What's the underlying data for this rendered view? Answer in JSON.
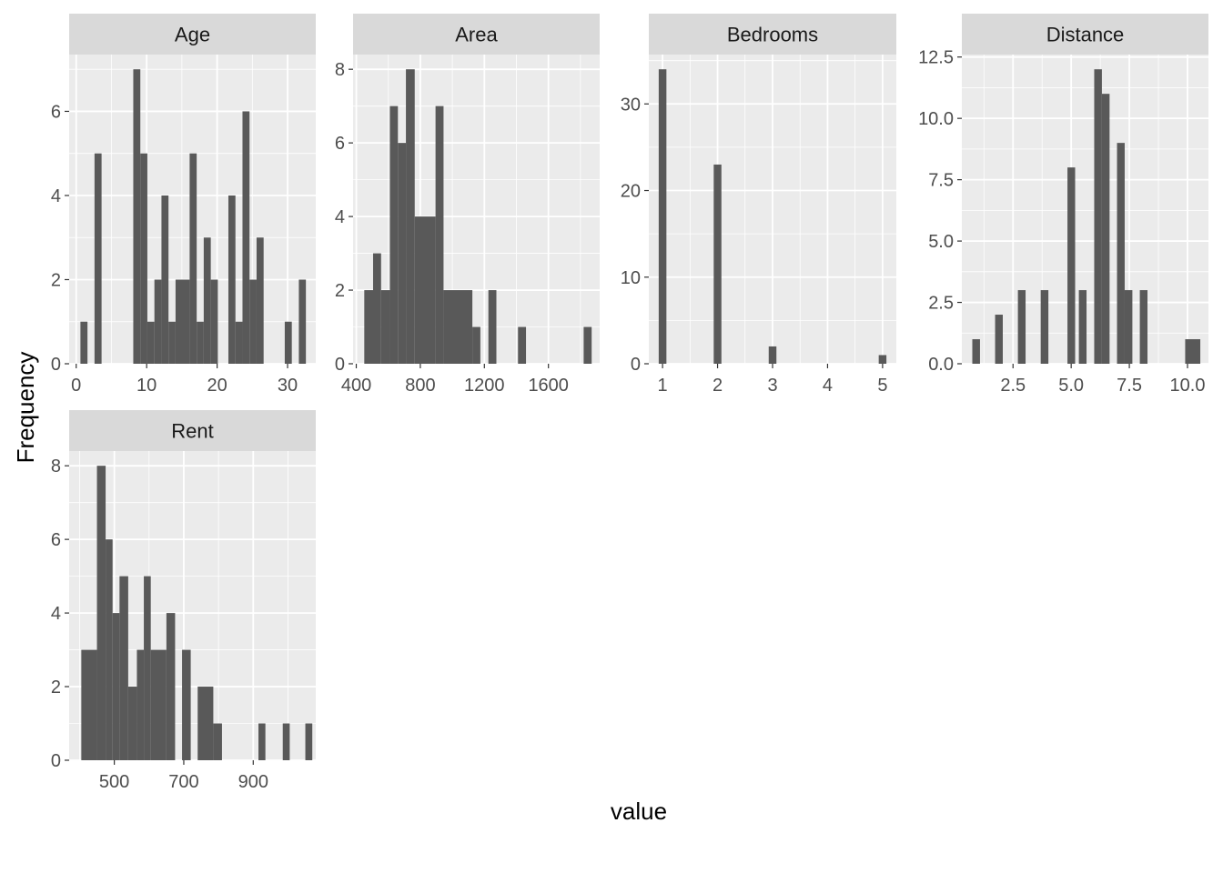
{
  "chart_data": {
    "type": "bar",
    "subtype": "faceted-histogram",
    "xlabel": "value",
    "ylabel": "Frequency",
    "colors": {
      "bar": "#595959",
      "panel_bg": "#ebebeb",
      "strip_bg": "#d9d9d9",
      "grid": "#ffffff",
      "tick_text": "#4d4d4d"
    },
    "grid": true,
    "facets": [
      {
        "title": "Age",
        "xlim": [
          -1,
          34
        ],
        "ylim": [
          0,
          7.35
        ],
        "xticks": [
          0,
          10,
          20,
          30
        ],
        "xtick_labels": [
          "0",
          "10",
          "20",
          "30"
        ],
        "yticks": [
          0,
          2,
          4,
          6
        ],
        "ytick_labels": [
          "0",
          "2",
          "4",
          "6"
        ],
        "bins": [
          {
            "x0": 0.6,
            "x1": 1.6,
            "count": 1
          },
          {
            "x0": 2.6,
            "x1": 3.6,
            "count": 5
          },
          {
            "x0": 8.1,
            "x1": 9.1,
            "count": 7
          },
          {
            "x0": 9.1,
            "x1": 10.1,
            "count": 5
          },
          {
            "x0": 10.1,
            "x1": 11.1,
            "count": 1
          },
          {
            "x0": 11.1,
            "x1": 12.1,
            "count": 2
          },
          {
            "x0": 12.1,
            "x1": 13.1,
            "count": 4
          },
          {
            "x0": 13.1,
            "x1": 14.1,
            "count": 1
          },
          {
            "x0": 14.1,
            "x1": 16.1,
            "count": 2
          },
          {
            "x0": 16.1,
            "x1": 17.1,
            "count": 5
          },
          {
            "x0": 17.1,
            "x1": 18.1,
            "count": 1
          },
          {
            "x0": 18.1,
            "x1": 19.1,
            "count": 3
          },
          {
            "x0": 19.1,
            "x1": 20.1,
            "count": 2
          },
          {
            "x0": 21.6,
            "x1": 22.6,
            "count": 4
          },
          {
            "x0": 22.6,
            "x1": 23.6,
            "count": 1
          },
          {
            "x0": 23.6,
            "x1": 24.6,
            "count": 6
          },
          {
            "x0": 24.6,
            "x1": 25.6,
            "count": 2
          },
          {
            "x0": 25.6,
            "x1": 26.6,
            "count": 3
          },
          {
            "x0": 29.6,
            "x1": 30.6,
            "count": 1
          },
          {
            "x0": 31.6,
            "x1": 32.6,
            "count": 2
          }
        ]
      },
      {
        "title": "Area",
        "xlim": [
          380,
          1920
        ],
        "ylim": [
          0,
          8.4
        ],
        "xticks": [
          400,
          800,
          1200,
          1600
        ],
        "xtick_labels": [
          "400",
          "800",
          "1200",
          "1600"
        ],
        "yticks": [
          0,
          2,
          4,
          6,
          8
        ],
        "ytick_labels": [
          "0",
          "2",
          "4",
          "6",
          "8"
        ],
        "bins": [
          {
            "x0": 450,
            "x1": 505,
            "count": 2
          },
          {
            "x0": 505,
            "x1": 555,
            "count": 3
          },
          {
            "x0": 555,
            "x1": 610,
            "count": 2
          },
          {
            "x0": 610,
            "x1": 660,
            "count": 7
          },
          {
            "x0": 660,
            "x1": 710,
            "count": 6
          },
          {
            "x0": 710,
            "x1": 765,
            "count": 8
          },
          {
            "x0": 765,
            "x1": 895,
            "count": 4
          },
          {
            "x0": 895,
            "x1": 945,
            "count": 7
          },
          {
            "x0": 945,
            "x1": 1125,
            "count": 2
          },
          {
            "x0": 1125,
            "x1": 1175,
            "count": 1
          },
          {
            "x0": 1225,
            "x1": 1275,
            "count": 2
          },
          {
            "x0": 1410,
            "x1": 1460,
            "count": 1
          },
          {
            "x0": 1820,
            "x1": 1870,
            "count": 1
          }
        ]
      },
      {
        "title": "Bedrooms",
        "xlim": [
          0.75,
          5.25
        ],
        "ylim": [
          0,
          35.7
        ],
        "xticks": [
          1,
          2,
          3,
          4,
          5
        ],
        "xtick_labels": [
          "1",
          "2",
          "3",
          "4",
          "5"
        ],
        "yticks": [
          0,
          10,
          20,
          30
        ],
        "ytick_labels": [
          "0",
          "10",
          "20",
          "30"
        ],
        "bins": [
          {
            "x0": 0.93,
            "x1": 1.07,
            "count": 34
          },
          {
            "x0": 1.93,
            "x1": 2.07,
            "count": 23
          },
          {
            "x0": 2.93,
            "x1": 3.07,
            "count": 2
          },
          {
            "x0": 4.93,
            "x1": 5.07,
            "count": 1
          }
        ]
      },
      {
        "title": "Distance",
        "xlim": [
          0.3,
          10.9
        ],
        "ylim": [
          0,
          12.6
        ],
        "xticks": [
          2.5,
          5.0,
          7.5,
          10.0
        ],
        "xtick_labels": [
          "2.5",
          "5.0",
          "7.5",
          "10.0"
        ],
        "yticks": [
          0,
          2.5,
          5.0,
          7.5,
          10.0,
          12.5
        ],
        "ytick_labels": [
          "0.0",
          "2.5",
          "5.0",
          "7.5",
          "10.0",
          "12.5"
        ],
        "bins": [
          {
            "x0": 0.75,
            "x1": 1.08,
            "count": 1
          },
          {
            "x0": 1.73,
            "x1": 2.06,
            "count": 2
          },
          {
            "x0": 2.71,
            "x1": 3.04,
            "count": 3
          },
          {
            "x0": 3.69,
            "x1": 4.02,
            "count": 3
          },
          {
            "x0": 4.84,
            "x1": 5.17,
            "count": 8
          },
          {
            "x0": 5.33,
            "x1": 5.66,
            "count": 3
          },
          {
            "x0": 5.99,
            "x1": 6.32,
            "count": 12
          },
          {
            "x0": 6.32,
            "x1": 6.65,
            "count": 11
          },
          {
            "x0": 6.97,
            "x1": 7.3,
            "count": 9
          },
          {
            "x0": 7.3,
            "x1": 7.63,
            "count": 3
          },
          {
            "x0": 7.95,
            "x1": 8.28,
            "count": 3
          },
          {
            "x0": 9.9,
            "x1": 10.55,
            "count": 1
          }
        ]
      },
      {
        "title": "Rent",
        "xlim": [
          370,
          1080
        ],
        "ylim": [
          0,
          8.4
        ],
        "xticks": [
          500,
          700,
          900
        ],
        "xtick_labels": [
          "500",
          "700",
          "900"
        ],
        "yticks": [
          0,
          2,
          4,
          6,
          8
        ],
        "ytick_labels": [
          "0",
          "2",
          "4",
          "6",
          "8"
        ],
        "bins": [
          {
            "x0": 405,
            "x1": 450,
            "count": 3
          },
          {
            "x0": 450,
            "x1": 475,
            "count": 8
          },
          {
            "x0": 475,
            "x1": 495,
            "count": 6
          },
          {
            "x0": 495,
            "x1": 515,
            "count": 4
          },
          {
            "x0": 515,
            "x1": 540,
            "count": 5
          },
          {
            "x0": 540,
            "x1": 565,
            "count": 2
          },
          {
            "x0": 565,
            "x1": 585,
            "count": 3
          },
          {
            "x0": 585,
            "x1": 605,
            "count": 5
          },
          {
            "x0": 605,
            "x1": 650,
            "count": 3
          },
          {
            "x0": 650,
            "x1": 675,
            "count": 4
          },
          {
            "x0": 695,
            "x1": 720,
            "count": 3
          },
          {
            "x0": 740,
            "x1": 785,
            "count": 2
          },
          {
            "x0": 785,
            "x1": 810,
            "count": 1
          },
          {
            "x0": 915,
            "x1": 935,
            "count": 1
          },
          {
            "x0": 985,
            "x1": 1005,
            "count": 1
          },
          {
            "x0": 1050,
            "x1": 1070,
            "count": 1
          }
        ]
      }
    ]
  }
}
